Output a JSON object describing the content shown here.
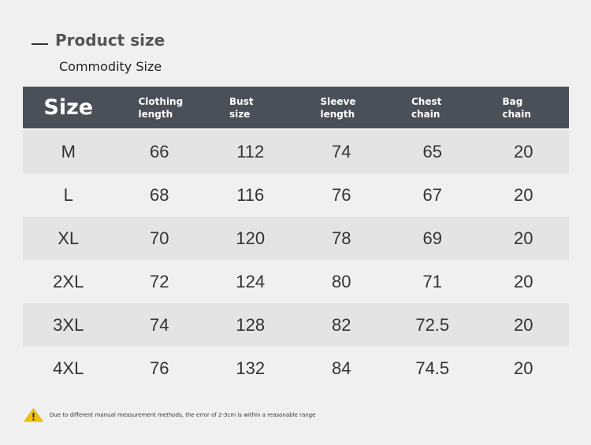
{
  "header": {
    "title": "Product size",
    "subtitle": "Commodity Size"
  },
  "table": {
    "columns": [
      "Size",
      "Clothing length",
      "Bust size",
      "Sleeve length",
      "Chest chain",
      "Bag chain"
    ],
    "rows": [
      [
        "M",
        66,
        112,
        74,
        65,
        20
      ],
      [
        "L",
        68,
        116,
        76,
        67,
        20
      ],
      [
        "XL",
        70,
        120,
        78,
        69,
        20
      ],
      [
        "2XL",
        72,
        124,
        80,
        71,
        20
      ],
      [
        "3XL",
        74,
        128,
        82,
        72.5,
        20
      ],
      [
        "4XL",
        76,
        132,
        84,
        74.5,
        20
      ]
    ]
  },
  "footnote": "Due to different manual measurement methods, the error of 2-3cm is within a reasonable range"
}
